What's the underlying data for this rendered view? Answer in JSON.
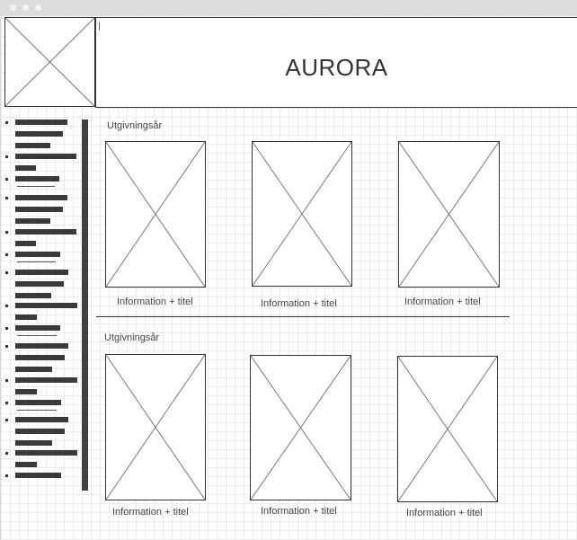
{
  "header": {
    "title": "AURORA"
  },
  "sidebar": {
    "item_count": 21
  },
  "sections": [
    {
      "label": "Utgivningsår",
      "cards": [
        {
          "caption": "Information + titel"
        },
        {
          "caption": "Information + titel"
        },
        {
          "caption": "Information + titel"
        }
      ]
    },
    {
      "label": "Utgivningsår",
      "cards": [
        {
          "caption": "Information + titel"
        },
        {
          "caption": "Information + titel"
        },
        {
          "caption": "Information + titel"
        }
      ]
    }
  ]
}
